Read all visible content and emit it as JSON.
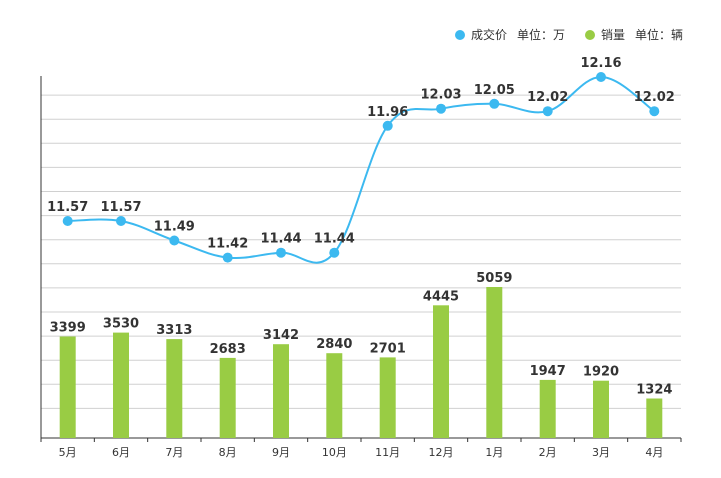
{
  "chart_data": {
    "type": "bar+line",
    "categories": [
      "5月",
      "6月",
      "7月",
      "8月",
      "9月",
      "10月",
      "11月",
      "12月",
      "1月",
      "2月",
      "3月",
      "4月"
    ],
    "series": [
      {
        "name": "成交价",
        "unit": "单位：万",
        "type": "line",
        "color": "#3cb9f0",
        "values": [
          11.57,
          11.57,
          11.49,
          11.42,
          11.44,
          11.44,
          11.96,
          12.03,
          12.05,
          12.02,
          12.16,
          12.02
        ]
      },
      {
        "name": "销量",
        "unit": "单位：辆",
        "type": "bar",
        "color": "#99cc44",
        "values": [
          3399,
          3530,
          3313,
          2683,
          3142,
          2840,
          2701,
          4445,
          5059,
          1947,
          1920,
          1324
        ]
      }
    ],
    "grid": true,
    "legend": "top-right"
  }
}
